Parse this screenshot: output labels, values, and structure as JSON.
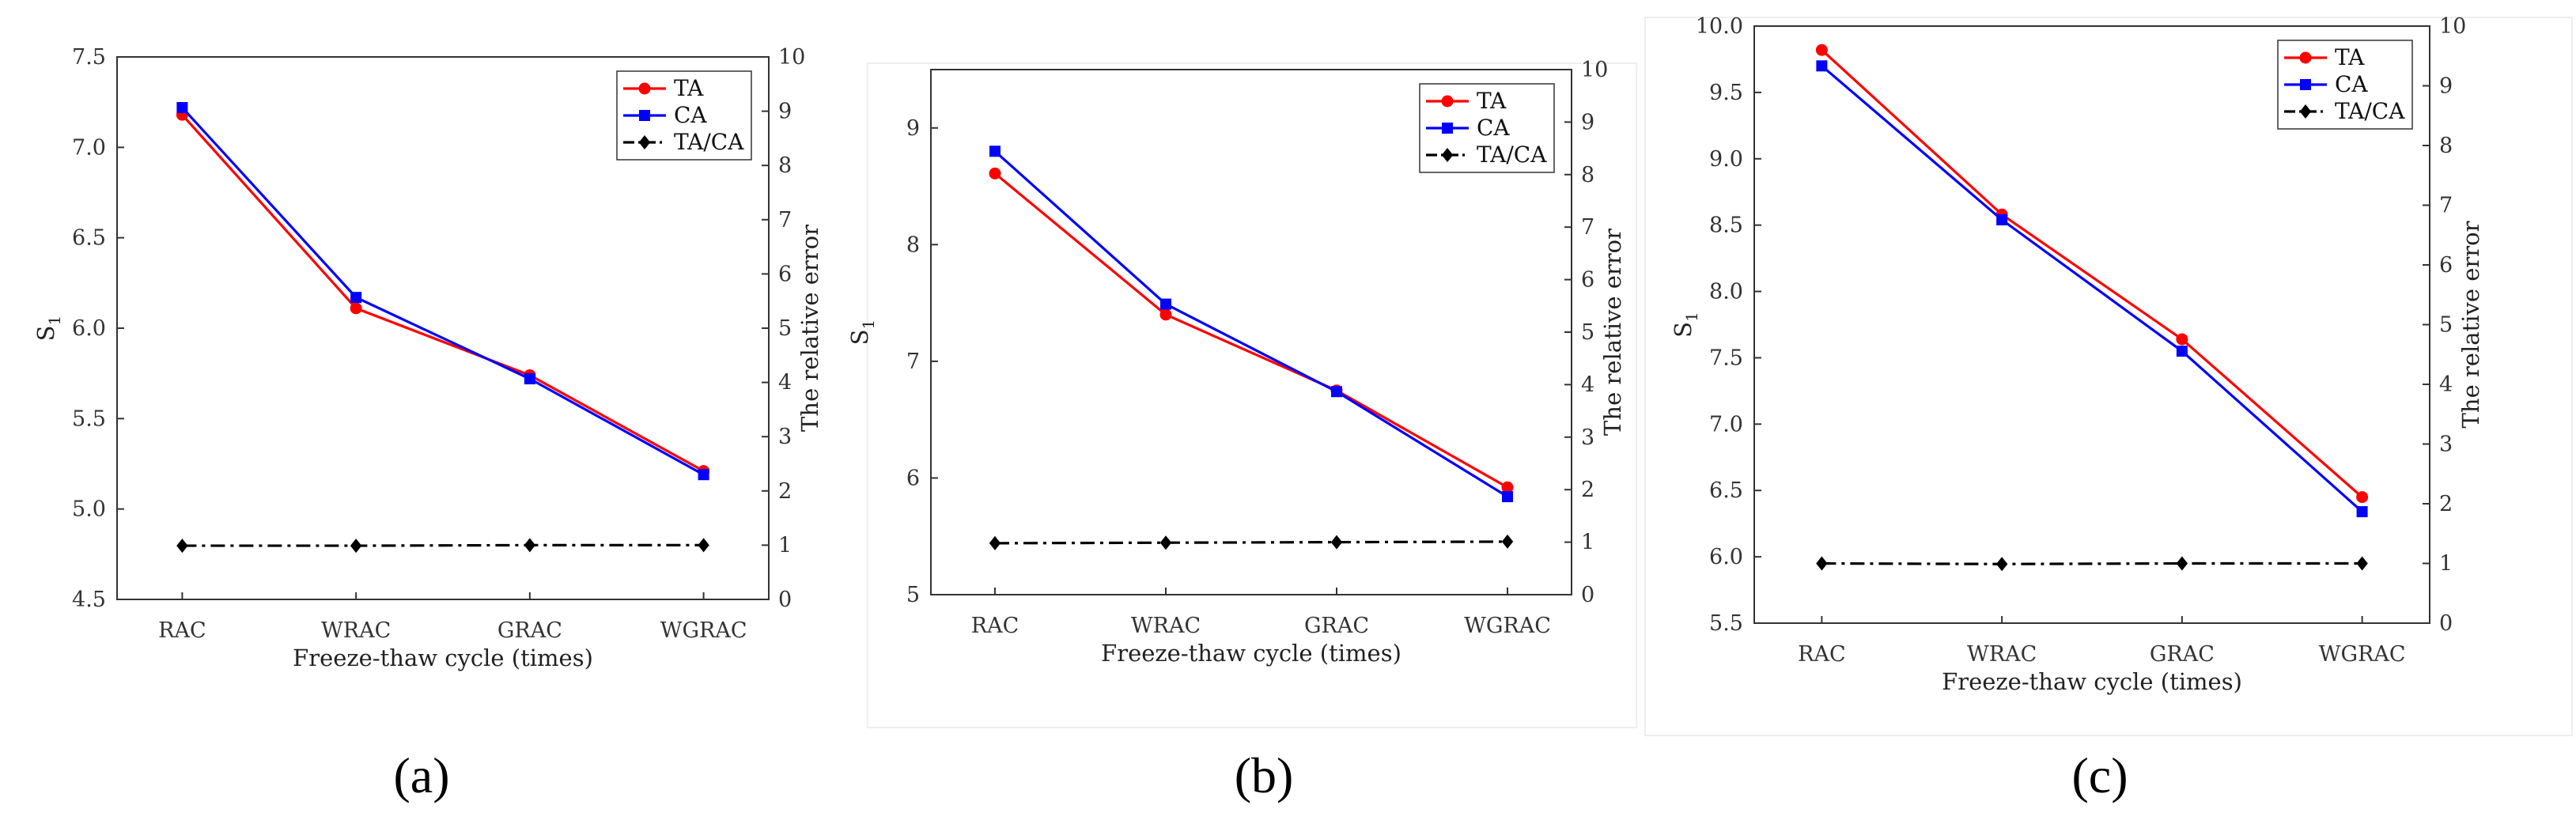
{
  "figure": {
    "series_style": {
      "TA": {
        "color": "#ff0000",
        "marker": "circle",
        "dash": "solid"
      },
      "CA": {
        "color": "#0000ff",
        "marker": "square",
        "dash": "solid"
      },
      "TA/CA": {
        "color": "#000000",
        "marker": "diamond",
        "dash": "dashdot"
      }
    }
  },
  "chart_data": [
    {
      "type": "line",
      "panel_label": "(a)",
      "categories": [
        "RAC",
        "WRAC",
        "GRAC",
        "WGRAC"
      ],
      "xlabel": "Freeze-thaw cycle (times)",
      "ylabel": "S1",
      "ylabel_main": "S",
      "ylabel_sub": "1",
      "y2label": "The relative error",
      "ylim": [
        4.5,
        7.5
      ],
      "yticks": [
        4.5,
        5.0,
        5.5,
        6.0,
        6.5,
        7.0,
        7.5
      ],
      "ytick_labels": [
        "4.5",
        "5.0",
        "5.5",
        "6.0",
        "6.5",
        "7.0",
        "7.5"
      ],
      "y2lim": [
        0,
        10
      ],
      "y2ticks": [
        0,
        1,
        2,
        3,
        4,
        5,
        6,
        7,
        8,
        9,
        10
      ],
      "y2tick_labels": [
        "0",
        "1",
        "2",
        "3",
        "4",
        "5",
        "6",
        "7",
        "8",
        "9",
        "10"
      ],
      "legend": "top-right",
      "series": [
        {
          "name": "TA",
          "axis": "left",
          "values": [
            7.18,
            6.11,
            5.74,
            5.21
          ]
        },
        {
          "name": "CA",
          "axis": "left",
          "values": [
            7.22,
            6.17,
            5.72,
            5.19
          ]
        },
        {
          "name": "TA/CA",
          "axis": "right",
          "values": [
            0.99,
            0.99,
            1.0,
            1.0
          ]
        }
      ]
    },
    {
      "type": "line",
      "panel_label": "(b)",
      "categories": [
        "RAC",
        "WRAC",
        "GRAC",
        "WGRAC"
      ],
      "xlabel": "Freeze-thaw cycle (times)",
      "ylabel": "S1",
      "ylabel_main": "S",
      "ylabel_sub": "1",
      "y2label": "The relative error",
      "ylim": [
        5,
        9.5
      ],
      "yticks": [
        5,
        6,
        7,
        8,
        9
      ],
      "ytick_labels": [
        "5",
        "6",
        "7",
        "8",
        "9"
      ],
      "y2lim": [
        0,
        10
      ],
      "y2ticks": [
        0,
        1,
        2,
        3,
        4,
        5,
        6,
        7,
        8,
        9,
        10
      ],
      "y2tick_labels": [
        "0",
        "1",
        "2",
        "3",
        "4",
        "5",
        "6",
        "7",
        "8",
        "9",
        "10"
      ],
      "legend": "top-right",
      "series": [
        {
          "name": "TA",
          "axis": "left",
          "values": [
            8.61,
            7.4,
            6.75,
            5.92
          ]
        },
        {
          "name": "CA",
          "axis": "left",
          "values": [
            8.8,
            7.49,
            6.74,
            5.84
          ]
        },
        {
          "name": "TA/CA",
          "axis": "right",
          "values": [
            0.98,
            0.99,
            1.0,
            1.01
          ]
        }
      ]
    },
    {
      "type": "line",
      "panel_label": "(c)",
      "categories": [
        "RAC",
        "WRAC",
        "GRAC",
        "WGRAC"
      ],
      "xlabel": "Freeze-thaw cycle (times)",
      "ylabel": "S1",
      "ylabel_main": "S",
      "ylabel_sub": "1",
      "y2label": "The relative error",
      "ylim": [
        5.5,
        10.0
      ],
      "yticks": [
        5.5,
        6.0,
        6.5,
        7.0,
        7.5,
        8.0,
        8.5,
        9.0,
        9.5,
        10.0
      ],
      "ytick_labels": [
        "5.5",
        "6.0",
        "6.5",
        "7.0",
        "7.5",
        "8.0",
        "8.5",
        "9.0",
        "9.5",
        "10.0"
      ],
      "y2lim": [
        0,
        10
      ],
      "y2ticks": [
        0,
        1,
        2,
        3,
        4,
        5,
        6,
        7,
        8,
        9,
        10
      ],
      "y2tick_labels": [
        "0",
        "1",
        "2",
        "3",
        "4",
        "5",
        "6",
        "7",
        "8",
        "9",
        "10"
      ],
      "legend": "top-right",
      "series": [
        {
          "name": "TA",
          "axis": "left",
          "values": [
            9.82,
            8.58,
            7.64,
            6.45
          ]
        },
        {
          "name": "CA",
          "axis": "left",
          "values": [
            9.7,
            8.54,
            7.55,
            6.34
          ]
        },
        {
          "name": "TA/CA",
          "axis": "right",
          "values": [
            1.0,
            0.99,
            1.0,
            1.0
          ]
        }
      ]
    }
  ]
}
